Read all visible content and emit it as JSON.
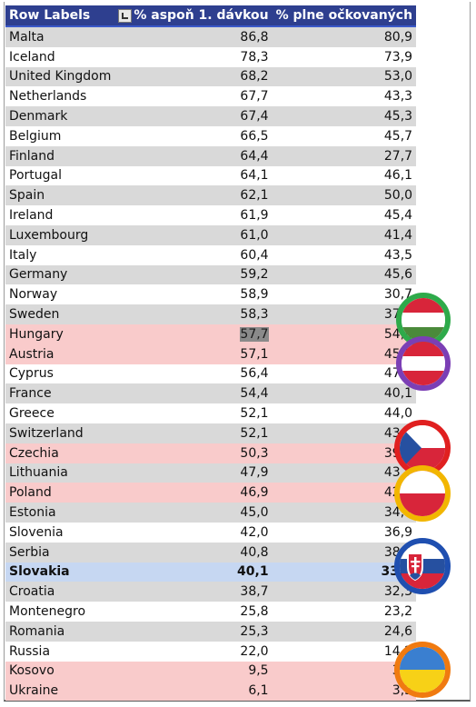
{
  "header": {
    "col1": "Row Labels",
    "col2": "% aspoň 1. dávkou",
    "col3": "% plne očkovaných"
  },
  "rows": [
    {
      "country": "Malta",
      "first": "86,8",
      "full": "80,9",
      "style": "grey"
    },
    {
      "country": "Iceland",
      "first": "78,3",
      "full": "73,9",
      "style": "white"
    },
    {
      "country": "United Kingdom",
      "first": "68,2",
      "full": "53,0",
      "style": "grey"
    },
    {
      "country": "Netherlands",
      "first": "67,7",
      "full": "43,3",
      "style": "white"
    },
    {
      "country": "Denmark",
      "first": "67,4",
      "full": "45,3",
      "style": "grey"
    },
    {
      "country": "Belgium",
      "first": "66,5",
      "full": "45,7",
      "style": "white"
    },
    {
      "country": "Finland",
      "first": "64,4",
      "full": "27,7",
      "style": "grey"
    },
    {
      "country": "Portugal",
      "first": "64,1",
      "full": "46,1",
      "style": "white"
    },
    {
      "country": "Spain",
      "first": "62,1",
      "full": "50,0",
      "style": "grey"
    },
    {
      "country": "Ireland",
      "first": "61,9",
      "full": "45,4",
      "style": "white"
    },
    {
      "country": "Luxembourg",
      "first": "61,0",
      "full": "41,4",
      "style": "grey"
    },
    {
      "country": "Italy",
      "first": "60,4",
      "full": "43,5",
      "style": "white"
    },
    {
      "country": "Germany",
      "first": "59,2",
      "full": "45,6",
      "style": "grey"
    },
    {
      "country": "Norway",
      "first": "58,9",
      "full": "30,7",
      "style": "white"
    },
    {
      "country": "Sweden",
      "first": "58,3",
      "full": "37,2",
      "style": "grey"
    },
    {
      "country": "Hungary",
      "first": "57,7",
      "full": "54,8",
      "style": "pink",
      "selected": true
    },
    {
      "country": "Austria",
      "first": "57,1",
      "full": "45,1",
      "style": "pink"
    },
    {
      "country": "Cyprus",
      "first": "56,4",
      "full": "47,8",
      "style": "white"
    },
    {
      "country": "France",
      "first": "54,4",
      "full": "40,1",
      "style": "grey"
    },
    {
      "country": "Greece",
      "first": "52,1",
      "full": "44,0",
      "style": "white"
    },
    {
      "country": "Switzerland",
      "first": "52,1",
      "full": "43,0",
      "style": "grey"
    },
    {
      "country": "Czechia",
      "first": "50,3",
      "full": "39,6",
      "style": "pink"
    },
    {
      "country": "Lithuania",
      "first": "47,9",
      "full": "43,2",
      "style": "grey"
    },
    {
      "country": "Poland",
      "first": "46,9",
      "full": "42,8",
      "style": "pink"
    },
    {
      "country": "Estonia",
      "first": "45,0",
      "full": "34,7",
      "style": "grey"
    },
    {
      "country": "Slovenia",
      "first": "42,0",
      "full": "36,9",
      "style": "white"
    },
    {
      "country": "Serbia",
      "first": "40,8",
      "full": "38,9",
      "style": "grey"
    },
    {
      "country": "Slovakia",
      "first": "40,1",
      "full": "33,7",
      "style": "blue"
    },
    {
      "country": "Croatia",
      "first": "38,7",
      "full": "32,3",
      "style": "grey"
    },
    {
      "country": "Montenegro",
      "first": "25,8",
      "full": "23,2",
      "style": "white"
    },
    {
      "country": "Romania",
      "first": "25,3",
      "full": "24,6",
      "style": "grey"
    },
    {
      "country": "Russia",
      "first": "22,0",
      "full": "14,2",
      "style": "white"
    },
    {
      "country": "Kosovo",
      "first": "9,5",
      "full": "3,1",
      "style": "pink"
    },
    {
      "country": "Ukraine",
      "first": "6,1",
      "full": "3,3",
      "style": "pink"
    }
  ],
  "flags": [
    {
      "name": "hungary-flag-icon",
      "ring": "#2eaa4a"
    },
    {
      "name": "austria-flag-icon",
      "ring": "#7b3fb5"
    },
    {
      "name": "czechia-flag-icon",
      "ring": "#e02020"
    },
    {
      "name": "poland-flag-icon",
      "ring": "#f2b600"
    },
    {
      "name": "slovakia-flag-icon",
      "ring": "#1f4fb0"
    },
    {
      "name": "ukraine-flag-icon",
      "ring": "#f07a10"
    }
  ]
}
